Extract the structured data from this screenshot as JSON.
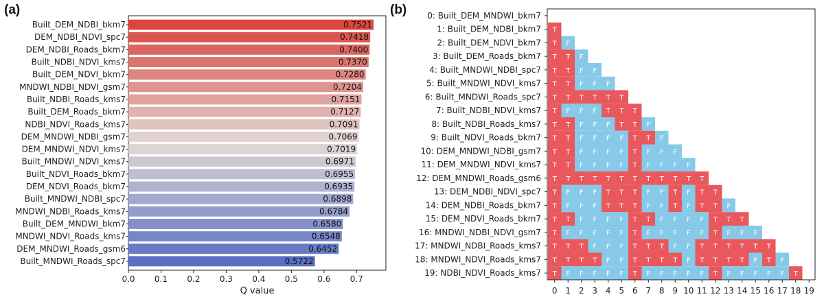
{
  "panels": {
    "a": "(a)",
    "b": "(b)"
  },
  "chart_data": [
    {
      "type": "bar",
      "orientation": "horizontal",
      "categories": [
        "Built_DEM_NDBI_bkm7",
        "DEM_NDBI_NDVI_spc7",
        "DEM_NDBI_Roads_bkm7",
        "Built_NDBI_NDVI_kms7",
        "Built_DEM_NDVI_bkm7",
        "MNDWI_NDBI_NDVI_gsm7",
        "Built_NDBI_Roads_kms7",
        "Built_DEM_Roads_bkm7",
        "NDBI_NDVI_Roads_kms7",
        "DEM_MNDWI_NDBI_gsm7",
        "DEM_MNDWI_NDVI_kms7",
        "Built_MNDWI_NDVI_kms7",
        "Built_NDVI_Roads_bkm7",
        "DEM_NDVI_Roads_bkm7",
        "Built_MNDWI_NDBI_spc7",
        "MNDWI_NDBI_Roads_kms7",
        "Built_DEM_MNDWI_bkm7",
        "MNDWI_NDVI_Roads_kms7",
        "DEM_MNDWI_Roads_gsm6",
        "Built_MNDWI_Roads_spc7"
      ],
      "values": [
        0.7521,
        0.7418,
        0.74,
        0.737,
        0.728,
        0.7204,
        0.7151,
        0.7127,
        0.7091,
        0.7069,
        0.7019,
        0.6971,
        0.6955,
        0.6935,
        0.6898,
        0.6784,
        0.658,
        0.6548,
        0.6452,
        0.5722
      ],
      "value_labels": [
        "0.7521",
        "0.7418",
        "0.7400",
        "0.7370",
        "0.7280",
        "0.7204",
        "0.7151",
        "0.7127",
        "0.7091",
        "0.7069",
        "0.7019",
        "0.6971",
        "0.6955",
        "0.6935",
        "0.6898",
        "0.6784",
        "0.6580",
        "0.6548",
        "0.6452",
        "0.5722"
      ],
      "xlabel": "Q value",
      "xticks": [
        "0.0",
        "0.1",
        "0.2",
        "0.3",
        "0.4",
        "0.5",
        "0.6",
        "0.7"
      ],
      "xlim": [
        0,
        0.79
      ],
      "colormap": "coolwarm",
      "colors": {
        "high": "#d9473f",
        "mid": "#e2dad7",
        "low": "#5a70c3"
      }
    },
    {
      "type": "heatmap",
      "shape": "lower-triangular",
      "row_labels": [
        "0: Built_DEM_MNDWI_bkm7",
        "1: Built_DEM_NDBI_bkm7",
        "2: Built_DEM_NDVI_bkm7",
        "3: Built_DEM_Roads_bkm7",
        "4: Built_MNDWI_NDBI_spc7",
        "5: Built_MNDWI_NDVI_kms7",
        "6: Built_MNDWI_Roads_spc7",
        "7: Built_NDBI_NDVI_kms7",
        "8: Built_NDBI_Roads_kms7",
        "9: Built_NDVI_Roads_bkm7",
        "10: DEM_MNDWI_NDBI_gsm7",
        "11: DEM_MNDWI_NDVI_kms7",
        "12: DEM_MNDWI_Roads_gsm6",
        "13: DEM_NDBI_NDVI_spc7",
        "14: DEM_NDBI_Roads_bkm7",
        "15: DEM_NDVI_Roads_bkm7",
        "16: MNDWI_NDBI_NDVI_gsm7",
        "17: MNDWI_NDBI_Roads_kms7",
        "18: MNDWI_NDVI_Roads_kms7",
        "19: NDBI_NDVI_Roads_kms7"
      ],
      "col_ticks": [
        "0",
        "1",
        "2",
        "3",
        "4",
        "5",
        "6",
        "7",
        "8",
        "9",
        "10",
        "11",
        "12",
        "13",
        "14",
        "15",
        "16",
        "17",
        "18",
        "19"
      ],
      "cells": [
        "",
        "T",
        "TF",
        "TTF",
        "TTFF",
        "TTFFF",
        "TTTTTT",
        "TFFFTTT",
        "TTFFFTTF",
        "TTFFFFTTF",
        "TTFFFFTFFF",
        "TTFFFFTFFFF",
        "TTTTTTTTTTTT",
        "TFFFTTTFFTFTT",
        "TFFFTTTFFTFTTF",
        "TTFFFFTTFFFFTTT",
        "TFFFFFTFFFFFTFFF",
        "TTTFFFTTTFFTTTTTT",
        "TTTTFFTTTTFTTTTFTF",
        "TFFFFFTFFFFFTFFFFFT"
      ],
      "legend_values": {
        "T": "T",
        "F": "F"
      },
      "colors": {
        "T": "#e8585c",
        "F": "#87c9e8"
      }
    }
  ]
}
